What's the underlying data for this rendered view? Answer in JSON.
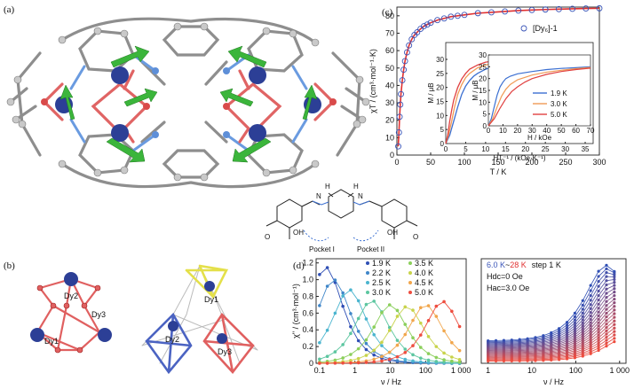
{
  "figure": {
    "panel_a": {
      "label": "(a)"
    },
    "panel_b": {
      "label": "(b)",
      "left_atoms": [
        "Dy1",
        "Dy2",
        "Dy3"
      ],
      "right_atoms": [
        "Dy1",
        "Dy2",
        "Dy3"
      ]
    },
    "panel_c": {
      "label": "(c)"
    },
    "panel_d": {
      "label": "(d)"
    },
    "ligand": {
      "pocket_1": "Pocket I",
      "pocket_2": "Pocket II",
      "oh": "OH",
      "o": "O",
      "n_labels": [
        "N",
        "N"
      ],
      "h_labels": [
        "H",
        "H"
      ]
    }
  },
  "chart_data": [
    {
      "id": "c-main",
      "type": "scatter",
      "xlabel": "T / K",
      "ylabel": "χT / (cm³·mol⁻¹·K)",
      "xticks": [
        0,
        50,
        100,
        150,
        200,
        250,
        300
      ],
      "yticks": [
        0,
        10,
        20,
        30,
        40,
        50,
        60,
        70,
        80
      ],
      "xlim": [
        0,
        300
      ],
      "ylim": [
        0,
        85
      ],
      "legend": "[Dy₆]-1",
      "x": [
        2,
        3,
        4,
        5,
        6,
        8,
        10,
        12,
        15,
        18,
        22,
        26,
        30,
        35,
        40,
        45,
        50,
        60,
        70,
        80,
        90,
        100,
        120,
        140,
        160,
        180,
        200,
        220,
        240,
        260,
        280,
        300
      ],
      "y": [
        5,
        13,
        22,
        29,
        35,
        43,
        49,
        54,
        59,
        63,
        66.5,
        69,
        70.5,
        72.5,
        74,
        75,
        76,
        77.5,
        78.5,
        79.5,
        80,
        80.5,
        81.5,
        82,
        82.5,
        83,
        83.3,
        83.6,
        83.8,
        84,
        84.2,
        84.3
      ]
    },
    {
      "id": "c-inset1",
      "type": "line",
      "xlabel": "HT⁻¹ / (kOe·K⁻¹)",
      "ylabel": "M / μB",
      "xticks": [
        0,
        5,
        10,
        15,
        20,
        25,
        30,
        35
      ],
      "yticks": [
        0,
        5,
        10,
        15,
        20,
        25,
        30
      ],
      "xlim": [
        0,
        37
      ],
      "ylim": [
        0,
        36
      ],
      "series": [
        {
          "name": "1.9 K",
          "color": "#3b6fd1",
          "x": [
            0,
            1,
            2,
            3,
            4,
            5,
            6,
            7,
            8,
            10,
            12,
            15,
            20,
            25,
            30,
            35
          ],
          "y": [
            0,
            3,
            8,
            13,
            17.5,
            20.5,
            22.5,
            24,
            25,
            26.5,
            27.5,
            28.5,
            29.5,
            30,
            30.5,
            31
          ]
        },
        {
          "name": "3.0 K",
          "color": "#f09a55",
          "x": [
            0,
            0.7,
            1.5,
            2.2,
            3,
            4,
            5,
            6,
            8,
            10,
            15,
            20
          ],
          "y": [
            0,
            3,
            8,
            13,
            17.5,
            21,
            23.5,
            25,
            27,
            28,
            29.5,
            30
          ]
        },
        {
          "name": "5.0 K",
          "color": "#e04040",
          "x": [
            0,
            0.5,
            1,
            1.5,
            2,
            3,
            4,
            5,
            6,
            8,
            10,
            13
          ],
          "y": [
            0,
            3,
            8,
            12,
            15.5,
            20,
            23,
            25,
            26.5,
            28,
            29,
            29.5
          ]
        }
      ]
    },
    {
      "id": "c-inset2",
      "type": "line",
      "xlabel": "H / kOe",
      "ylabel": "M / μB",
      "xticks": [
        0,
        10,
        20,
        30,
        40,
        50,
        60,
        70
      ],
      "yticks": [
        0,
        5,
        10,
        15,
        20,
        25,
        30
      ],
      "xlim": [
        0,
        70
      ],
      "ylim": [
        0,
        30
      ],
      "series": [
        {
          "name": "1.9 K",
          "color": "#3b6fd1",
          "x": [
            0,
            2,
            4,
            6,
            8,
            10,
            12,
            15,
            20,
            30,
            40,
            50,
            60,
            70
          ],
          "y": [
            0,
            3,
            8,
            13,
            16.5,
            18.5,
            20,
            21,
            22,
            23,
            23.8,
            24.3,
            24.6,
            25
          ]
        },
        {
          "name": "3.0 K",
          "color": "#f09a55",
          "x": [
            0,
            3,
            6,
            9,
            12,
            15,
            20,
            30,
            40,
            50,
            60,
            70
          ],
          "y": [
            0,
            3,
            8,
            12.5,
            15.5,
            17.5,
            19.5,
            21.5,
            22.7,
            23.5,
            24.2,
            24.7
          ]
        },
        {
          "name": "5.0 K",
          "color": "#e04040",
          "x": [
            0,
            4,
            8,
            12,
            16,
            20,
            25,
            30,
            40,
            50,
            60,
            70
          ],
          "y": [
            0,
            3,
            7.5,
            11.5,
            14.5,
            16.5,
            18.5,
            20,
            21.8,
            23,
            23.8,
            24.4
          ]
        }
      ]
    },
    {
      "id": "d-left",
      "type": "scatter",
      "xlabel": "ν / Hz",
      "ylabel": "χ\" / (cm³·mol⁻¹)",
      "xscale": "log",
      "xticks": [
        0.1,
        1,
        10,
        100,
        1000
      ],
      "xticklabels": [
        "0.1",
        "1",
        "10",
        "100",
        "1 000"
      ],
      "yticks": [
        0,
        0.2,
        0.4,
        0.6,
        0.8,
        1.0,
        1.2
      ],
      "yticklabels": [
        "0",
        "0.2",
        "0.4",
        "0.6",
        "0.8",
        "1.0",
        "1.2"
      ],
      "xlim": [
        0.08,
        1400
      ],
      "ylim": [
        0,
        1.25
      ],
      "series": [
        {
          "name": "1.9 K",
          "color": "#2f4fb5",
          "peak_hz": 0.15,
          "peak": 1.15
        },
        {
          "name": "2.2 K",
          "color": "#3f86c9",
          "peak_hz": 0.25,
          "peak": 1.0
        },
        {
          "name": "2.5 K",
          "color": "#4bb5cf",
          "peak_hz": 0.7,
          "peak": 0.88
        },
        {
          "name": "3.0 K",
          "color": "#5cc6a0",
          "peak_hz": 3,
          "peak": 0.75
        },
        {
          "name": "3.5 K",
          "color": "#8bcf5b",
          "peak_hz": 10,
          "peak": 0.7
        },
        {
          "name": "4.0 K",
          "color": "#c8d34a",
          "peak_hz": 30,
          "peak": 0.68
        },
        {
          "name": "4.5 K",
          "color": "#f1a64b",
          "peak_hz": 100,
          "peak": 0.7
        },
        {
          "name": "5.0 K",
          "color": "#ee4d3f",
          "peak_hz": 300,
          "peak": 0.74
        }
      ]
    },
    {
      "id": "d-right",
      "type": "scatter",
      "xlabel": "ν / Hz",
      "xscale": "log",
      "xticks": [
        1,
        10,
        100,
        1000
      ],
      "xticklabels": [
        "1",
        "10",
        "100",
        "1 000"
      ],
      "xlim": [
        0.7,
        1400
      ],
      "ylim": [
        0,
        0.8
      ],
      "annotation": {
        "range_lo": "6.0 K",
        "range_sep": "~",
        "range_hi": "28 K",
        "step": "step 1 K",
        "hdc": "Hdc=0 Oe",
        "hac": "Hac=3.0 Oe"
      },
      "series_count": 23,
      "color_start": "#2f4fb5",
      "color_end": "#ee4d3f"
    }
  ]
}
